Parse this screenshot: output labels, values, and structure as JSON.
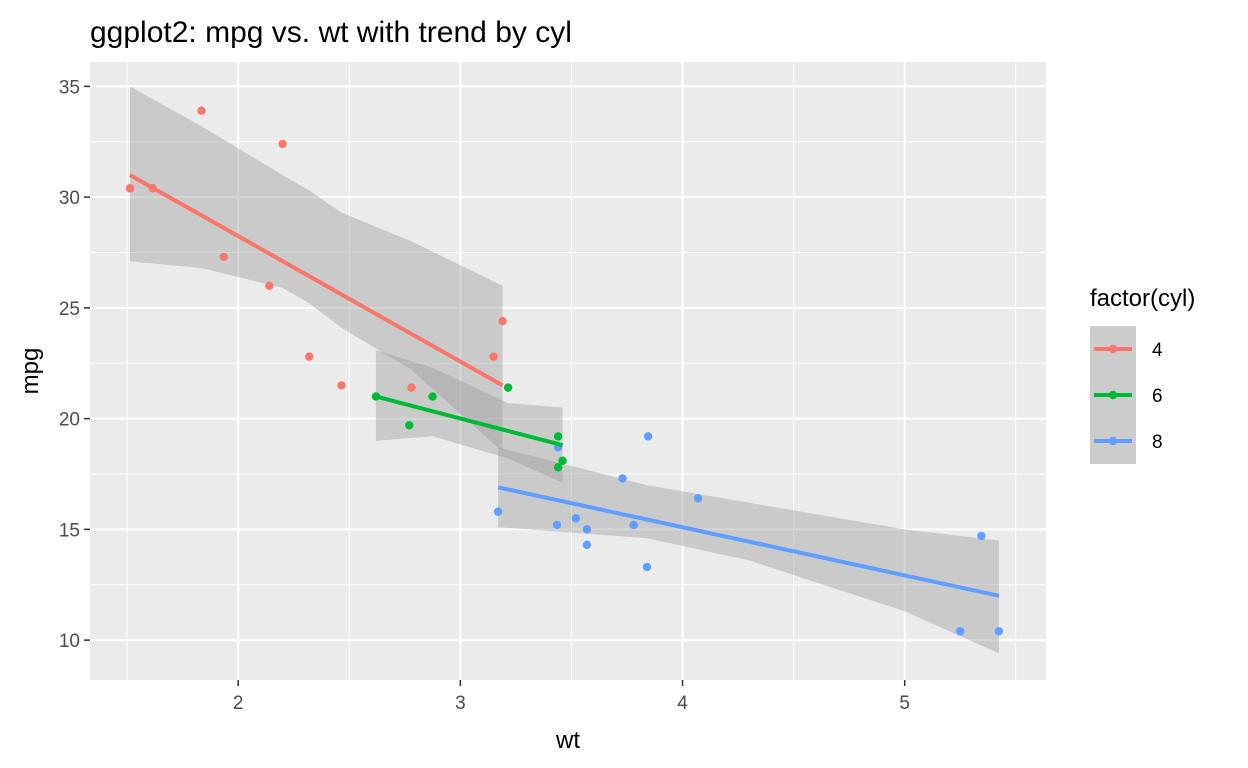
{
  "chart_data": {
    "type": "scatter",
    "title": "ggplot2: mpg vs. wt with trend by cyl",
    "xlabel": "wt",
    "ylabel": "mpg",
    "xlim": [
      1.333,
      5.636
    ],
    "ylim": [
      8.2,
      36.1
    ],
    "x_ticks": [
      2,
      3,
      4,
      5
    ],
    "y_ticks": [
      10,
      15,
      20,
      25,
      30,
      35
    ],
    "grid": true,
    "legend": {
      "title": "factor(cyl)",
      "placement": "right"
    },
    "trend": "linear fit with confidence band, per group",
    "series": [
      {
        "name": "4",
        "color": "#F8766D",
        "points": [
          [
            2.32,
            22.8
          ],
          [
            3.19,
            24.4
          ],
          [
            3.15,
            22.8
          ],
          [
            2.2,
            32.4
          ],
          [
            1.615,
            30.4
          ],
          [
            1.835,
            33.9
          ],
          [
            2.465,
            21.5
          ],
          [
            1.935,
            27.3
          ],
          [
            2.14,
            26.0
          ],
          [
            1.513,
            30.4
          ],
          [
            2.78,
            21.4
          ]
        ],
        "fit": {
          "x": [
            1.513,
            3.19
          ],
          "y": [
            31.0,
            21.5
          ]
        },
        "band": {
          "x": [
            1.513,
            1.835,
            2.2,
            2.32,
            2.465,
            2.78,
            3.19
          ],
          "lower": [
            27.1,
            26.8,
            25.9,
            25.2,
            24.1,
            22.2,
            18.5
          ],
          "upper": [
            35.0,
            33.2,
            31.0,
            30.3,
            29.3,
            28.0,
            26.0
          ]
        }
      },
      {
        "name": "6",
        "color": "#00BA38",
        "points": [
          [
            2.62,
            21.0
          ],
          [
            2.875,
            21.0
          ],
          [
            3.215,
            21.4
          ],
          [
            3.46,
            18.1
          ],
          [
            3.44,
            19.2
          ],
          [
            3.44,
            17.8
          ],
          [
            2.77,
            19.7
          ]
        ],
        "fit": {
          "x": [
            2.62,
            3.46
          ],
          "y": [
            21.0,
            18.8
          ]
        },
        "band": {
          "x": [
            2.62,
            2.875,
            3.215,
            3.46
          ],
          "lower": [
            19.0,
            19.2,
            18.2,
            17.1
          ],
          "upper": [
            23.1,
            22.3,
            20.7,
            20.5
          ]
        }
      },
      {
        "name": "8",
        "color": "#619CFF",
        "points": [
          [
            3.44,
            18.7
          ],
          [
            3.57,
            14.3
          ],
          [
            4.07,
            16.4
          ],
          [
            3.73,
            17.3
          ],
          [
            3.78,
            15.2
          ],
          [
            5.25,
            10.4
          ],
          [
            5.424,
            10.4
          ],
          [
            5.345,
            14.7
          ],
          [
            3.52,
            15.5
          ],
          [
            3.435,
            15.2
          ],
          [
            3.84,
            13.3
          ],
          [
            3.845,
            19.2
          ],
          [
            3.17,
            15.8
          ],
          [
            3.57,
            15.0
          ]
        ],
        "fit": {
          "x": [
            3.17,
            5.424
          ],
          "y": [
            16.9,
            12.0
          ]
        },
        "band": {
          "x": [
            3.17,
            3.84,
            4.3,
            5.0,
            5.424
          ],
          "lower": [
            15.1,
            14.6,
            13.6,
            11.3,
            9.4
          ],
          "upper": [
            18.7,
            17.0,
            16.2,
            15.0,
            14.5
          ]
        }
      }
    ]
  }
}
